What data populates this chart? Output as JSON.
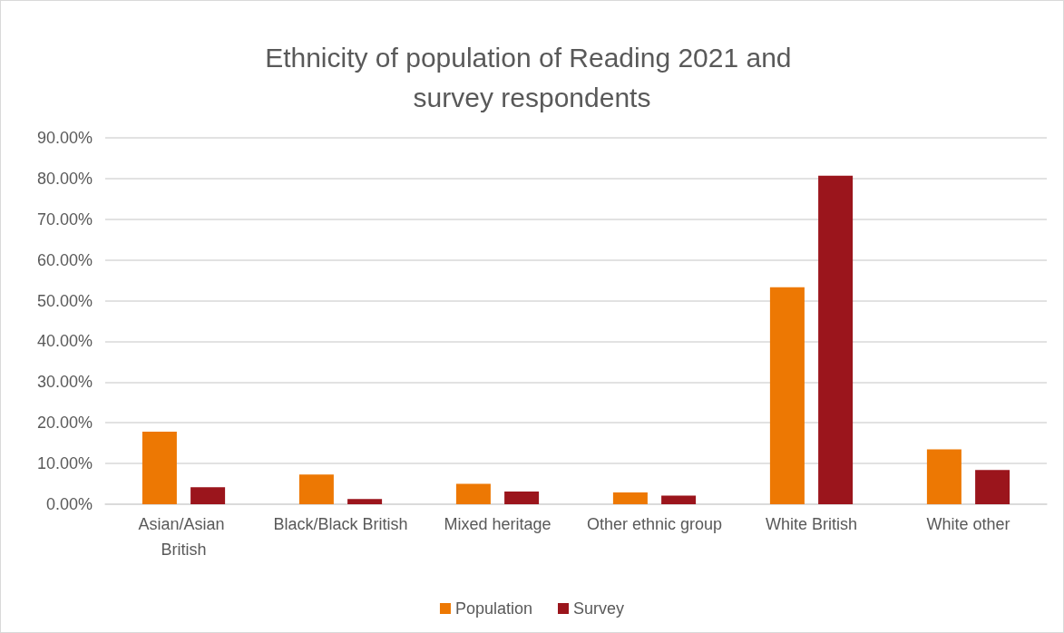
{
  "chart_data": {
    "type": "bar",
    "title": "Ethnicity of population of Reading 2021 and survey respondents",
    "categories": [
      "Asian/Asian British",
      "Black/Black British",
      "Mixed heritage",
      "Other ethnic group",
      "White British",
      "White other"
    ],
    "series": [
      {
        "name": "Population",
        "color": "#ed7803",
        "values": [
          17.8,
          7.3,
          5.0,
          2.9,
          53.3,
          13.5
        ]
      },
      {
        "name": "Survey",
        "color": "#9b151c",
        "values": [
          4.2,
          1.3,
          3.1,
          2.1,
          80.7,
          8.4
        ]
      }
    ],
    "ylim": [
      0,
      90
    ],
    "yticks": [
      {
        "value": 0,
        "label": "0.00%"
      },
      {
        "value": 10,
        "label": "10.00%"
      },
      {
        "value": 20,
        "label": "20.00%"
      },
      {
        "value": 30,
        "label": "30.00%"
      },
      {
        "value": 40,
        "label": "40.00%"
      },
      {
        "value": 50,
        "label": "50.00%"
      },
      {
        "value": 60,
        "label": "60.00%"
      },
      {
        "value": 70,
        "label": "70.00%"
      },
      {
        "value": 80,
        "label": "80.00%"
      },
      {
        "value": 90,
        "label": "90.00%"
      }
    ],
    "grid": "y",
    "legend": "bottom"
  }
}
